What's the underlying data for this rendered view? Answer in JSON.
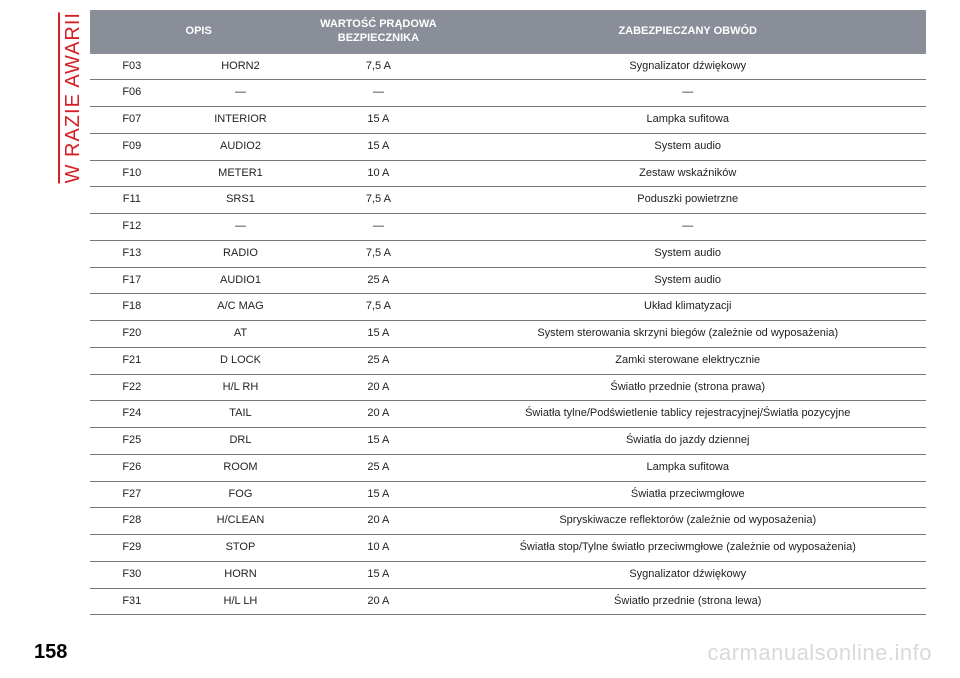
{
  "sideLabel": "W RAZIE AWARII",
  "pageNumber": "158",
  "watermark": "carmanualsonline.info",
  "table": {
    "headers": {
      "opis": "OPIS",
      "amp": "WARTOŚĆ PRĄDOWA BEZPIECZNIKA",
      "circuit": "ZABEZPIECZANY OBWÓD"
    },
    "rows": [
      {
        "code": "F03",
        "name": "HORN2",
        "amp": "7,5 A",
        "circuit": "Sygnalizator dźwiękowy"
      },
      {
        "code": "F06",
        "name": "—",
        "amp": "—",
        "circuit": "—"
      },
      {
        "code": "F07",
        "name": "INTERIOR",
        "amp": "15 A",
        "circuit": "Lampka sufitowa"
      },
      {
        "code": "F09",
        "name": "AUDIO2",
        "amp": "15 A",
        "circuit": "System audio"
      },
      {
        "code": "F10",
        "name": "METER1",
        "amp": "10 A",
        "circuit": "Zestaw wskaźników"
      },
      {
        "code": "F11",
        "name": "SRS1",
        "amp": "7,5 A",
        "circuit": "Poduszki powietrzne"
      },
      {
        "code": "F12",
        "name": "—",
        "amp": "—",
        "circuit": "—"
      },
      {
        "code": "F13",
        "name": "RADIO",
        "amp": "7,5 A",
        "circuit": "System audio"
      },
      {
        "code": "F17",
        "name": "AUDIO1",
        "amp": "25 A",
        "circuit": "System audio"
      },
      {
        "code": "F18",
        "name": "A/C MAG",
        "amp": "7,5 A",
        "circuit": "Układ klimatyzacji"
      },
      {
        "code": "F20",
        "name": "AT",
        "amp": "15 A",
        "circuit": "System sterowania skrzyni biegów (zależnie od wyposażenia)"
      },
      {
        "code": "F21",
        "name": "D LOCK",
        "amp": "25 A",
        "circuit": "Zamki sterowane elektrycznie"
      },
      {
        "code": "F22",
        "name": "H/L RH",
        "amp": "20 A",
        "circuit": "Światło przednie (strona prawa)"
      },
      {
        "code": "F24",
        "name": "TAIL",
        "amp": "20 A",
        "circuit": "Światła tylne/Podświetlenie tablicy rejestracyjnej/Światła pozycyjne"
      },
      {
        "code": "F25",
        "name": "DRL",
        "amp": "15 A",
        "circuit": "Światła do jazdy dziennej"
      },
      {
        "code": "F26",
        "name": "ROOM",
        "amp": "25 A",
        "circuit": "Lampka sufitowa"
      },
      {
        "code": "F27",
        "name": "FOG",
        "amp": "15 A",
        "circuit": "Światła przeciwmgłowe"
      },
      {
        "code": "F28",
        "name": "H/CLEAN",
        "amp": "20 A",
        "circuit": "Spryskiwacze reflektorów (zależnie od wyposażenia)"
      },
      {
        "code": "F29",
        "name": "STOP",
        "amp": "10 A",
        "circuit": "Światła stop/Tylne światło przeciwmgłowe (zależnie od wyposażenia)"
      },
      {
        "code": "F30",
        "name": "HORN",
        "amp": "15 A",
        "circuit": "Sygnalizator dźwiękowy"
      },
      {
        "code": "F31",
        "name": "H/L LH",
        "amp": "20 A",
        "circuit": "Światło przednie (strona lewa)"
      }
    ]
  },
  "style": {
    "headerBg": "#8a8e98",
    "headerText": "#ffffff",
    "rowBorder": "#777777",
    "accent": "#d62027",
    "watermarkColor": "#d9d9d9",
    "fontSizeBody": 11,
    "fontSizeHeader": 11,
    "fontSizeSide": 20,
    "fontSizePageNum": 20
  }
}
